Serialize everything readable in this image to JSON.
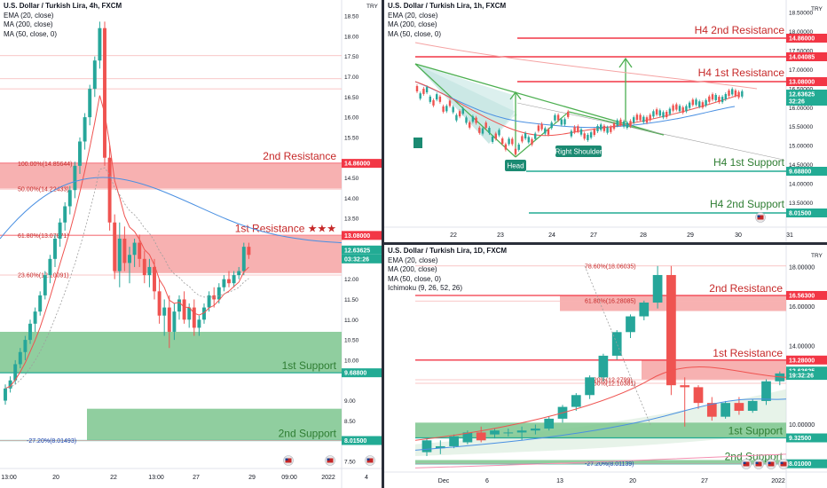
{
  "panels": [
    {
      "id": "h4",
      "header": {
        "title": "U.S. Dollar / Turkish Lira, 4h, FXCM",
        "indicators": [
          "EMA (20, close)",
          "MA (200, close)",
          "MA (50, close, 0)"
        ]
      },
      "chart_data": {
        "type": "candlestick",
        "title": "U.S. Dollar / Turkish Lira, 4h, FXCM",
        "currency": "TRY",
        "ylim": [
          7.5,
          18.5
        ],
        "y_ticks": [
          7.5,
          8.0,
          8.5,
          9.0,
          9.5,
          10.0,
          10.5,
          11.0,
          11.5,
          12.0,
          12.5,
          13.0,
          13.5,
          14.0,
          14.5,
          15.0,
          15.5,
          16.0,
          16.5,
          17.0,
          17.5,
          18.0,
          18.5
        ],
        "x_ticks": [
          "13:00",
          "20",
          "22",
          "13:00",
          "27",
          "29",
          "09:00",
          "2022",
          "4"
        ],
        "candles": [
          [
            9.0,
            9.4,
            8.9,
            9.3
          ],
          [
            9.3,
            9.6,
            9.2,
            9.5
          ],
          [
            9.5,
            10.0,
            9.4,
            9.9
          ],
          [
            9.9,
            10.3,
            9.8,
            10.2
          ],
          [
            10.2,
            10.6,
            10.0,
            10.5
          ],
          [
            10.5,
            11.0,
            10.4,
            10.9
          ],
          [
            10.9,
            11.3,
            10.7,
            11.2
          ],
          [
            11.2,
            11.7,
            11.1,
            11.6
          ],
          [
            11.6,
            12.2,
            11.5,
            12.1
          ],
          [
            12.1,
            12.6,
            11.9,
            12.5
          ],
          [
            12.5,
            13.1,
            12.3,
            13.0
          ],
          [
            13.0,
            13.5,
            12.8,
            13.4
          ],
          [
            13.4,
            13.9,
            13.2,
            13.8
          ],
          [
            13.8,
            14.3,
            13.6,
            14.2
          ],
          [
            14.2,
            14.9,
            14.0,
            14.8
          ],
          [
            14.8,
            15.5,
            14.6,
            15.4
          ],
          [
            15.4,
            16.1,
            15.2,
            16.0
          ],
          [
            16.0,
            16.8,
            15.8,
            16.7
          ],
          [
            16.7,
            17.5,
            16.5,
            17.4
          ],
          [
            17.4,
            18.36,
            17.2,
            18.2
          ],
          [
            18.2,
            18.36,
            14.8,
            15.0
          ],
          [
            15.0,
            15.3,
            13.2,
            13.4
          ],
          [
            13.4,
            13.6,
            12.0,
            12.2
          ],
          [
            12.2,
            13.4,
            11.8,
            13.0
          ],
          [
            13.0,
            13.3,
            12.2,
            12.4
          ],
          [
            12.4,
            12.8,
            11.9,
            12.6
          ],
          [
            12.6,
            13.0,
            12.3,
            12.9
          ],
          [
            12.9,
            13.1,
            12.3,
            12.5
          ],
          [
            12.5,
            12.7,
            11.9,
            12.1
          ],
          [
            12.1,
            12.5,
            11.8,
            12.3
          ],
          [
            12.3,
            12.5,
            11.5,
            11.7
          ],
          [
            11.7,
            12.0,
            10.9,
            11.1
          ],
          [
            11.1,
            11.5,
            10.6,
            11.3
          ],
          [
            11.3,
            11.6,
            10.3,
            10.7
          ],
          [
            10.7,
            11.4,
            10.5,
            11.2
          ],
          [
            11.2,
            11.6,
            11.0,
            11.5
          ],
          [
            11.5,
            11.7,
            10.9,
            11.0
          ],
          [
            11.0,
            11.4,
            10.8,
            11.3
          ],
          [
            11.3,
            11.5,
            10.6,
            10.8
          ],
          [
            10.8,
            11.1,
            10.6,
            11.0
          ],
          [
            11.0,
            11.4,
            10.9,
            11.3
          ],
          [
            11.3,
            11.7,
            11.2,
            11.6
          ],
          [
            11.6,
            11.8,
            11.3,
            11.5
          ],
          [
            11.5,
            11.9,
            11.4,
            11.8
          ],
          [
            11.8,
            12.1,
            11.7,
            12.0
          ],
          [
            12.0,
            12.2,
            11.8,
            11.9
          ],
          [
            11.9,
            12.2,
            11.8,
            12.1
          ],
          [
            12.1,
            12.3,
            12.0,
            12.2
          ],
          [
            12.2,
            12.9,
            12.1,
            12.8
          ],
          [
            12.8,
            12.9,
            12.5,
            12.6
          ]
        ],
        "fib_levels": [
          {
            "label": "100.00%(14.85644)",
            "value": 14.856
          },
          {
            "label": "50.00%(14.22433)",
            "value": 14.224
          },
          {
            "label": "61.80%(13.07871)",
            "value": 13.079
          },
          {
            "label": "23.60%(12.10091)",
            "value": 12.101
          },
          {
            "label": "-27.20%(8.01493)",
            "value": 8.015
          }
        ],
        "zones": [
          {
            "label": "2nd Resistance",
            "from": 14.24,
            "to": 14.86,
            "kind": "resistance"
          },
          {
            "label": "1st Resistance ★★★",
            "from": 12.15,
            "to": 13.08,
            "kind": "resistance"
          },
          {
            "label": "1st Support",
            "from": 9.688,
            "to": 10.7,
            "kind": "support"
          },
          {
            "label": "2nd Support",
            "from": 8.015,
            "to": 8.8,
            "kind": "support"
          }
        ],
        "price_tags": [
          {
            "label": "14.86000",
            "value": 14.86,
            "color": "#f23645"
          },
          {
            "label": "13.08000",
            "value": 13.08,
            "color": "#f23645"
          },
          {
            "label": "12.63625",
            "value": 12.72,
            "color": "#22ab94"
          },
          {
            "label": "03:32:26",
            "value": 12.5,
            "color": "#22ab94"
          },
          {
            "label": "9.68800",
            "value": 9.688,
            "color": "#22ab94"
          },
          {
            "label": "8.01500",
            "value": 8.015,
            "color": "#22ab94"
          }
        ]
      }
    },
    {
      "id": "h1",
      "header": {
        "title": "U.S. Dollar / Turkish Lira, 1h, FXCM",
        "indicators": [
          "EMA (20, close)",
          "MA (200, close)",
          "MA (50, close, 0)"
        ]
      },
      "chart_data": {
        "type": "candlestick",
        "title": "U.S. Dollar / Turkish Lira, 1h, FXCM",
        "currency": "TRY",
        "ylim": [
          13.0,
          18.5
        ],
        "y_ticks": [
          13.5,
          14.0,
          14.5,
          15.0,
          15.5,
          16.0,
          16.5,
          17.0,
          17.5,
          18.0,
          18.5
        ],
        "x_ticks": [
          "22",
          "23",
          "24",
          "27",
          "28",
          "29",
          "30",
          "31"
        ],
        "pattern_labels": [
          "Head",
          "Right Shoulder"
        ],
        "zones": [
          {
            "label": "H4 2nd Resistance",
            "value": 14.86
          },
          {
            "label": "H4 1st Resistance",
            "value": 13.08
          },
          {
            "label": "H4 1st Support",
            "value": 9.688
          },
          {
            "label": "H4 2nd Support",
            "value": 8.015
          }
        ],
        "price_tags": [
          {
            "label": "14.86000",
            "color": "#f23645"
          },
          {
            "label": "14.04085",
            "color": "#f23645"
          },
          {
            "label": "13.08000",
            "color": "#f23645"
          },
          {
            "label": "12.63625",
            "color": "#22ab94"
          },
          {
            "label": "32:26",
            "color": "#22ab94"
          },
          {
            "label": "9.68800",
            "color": "#22ab94"
          },
          {
            "label": "8.01500",
            "color": "#22ab94"
          }
        ]
      }
    },
    {
      "id": "d1",
      "header": {
        "title": "U.S. Dollar / Turkish Lira, 1D, FXCM",
        "indicators": [
          "EMA (20, close)",
          "MA (200, close)",
          "MA (50, close, 0)",
          "Ichimoku (9, 26, 52, 26)"
        ]
      },
      "chart_data": {
        "type": "candlestick",
        "title": "U.S. Dollar / Turkish Lira, 1D, FXCM",
        "currency": "TRY",
        "ylim": [
          7.5,
          18.5
        ],
        "y_ticks": [
          10.0,
          12.0,
          14.0,
          16.0,
          18.0
        ],
        "x_ticks": [
          "Dec",
          "6",
          "13",
          "20",
          "27",
          "2022"
        ],
        "candles": [
          [
            8.6,
            9.3,
            8.4,
            9.2
          ],
          [
            8.8,
            9.2,
            8.5,
            8.9
          ],
          [
            8.9,
            9.5,
            8.8,
            9.4
          ],
          [
            9.1,
            9.7,
            9.0,
            9.6
          ],
          [
            9.6,
            9.9,
            9.1,
            9.2
          ],
          [
            9.5,
            9.8,
            9.3,
            9.7
          ],
          [
            9.6,
            9.8,
            9.4,
            9.6
          ],
          [
            9.6,
            9.9,
            9.2,
            9.7
          ],
          [
            9.7,
            10.0,
            9.5,
            9.8
          ],
          [
            9.8,
            10.4,
            9.7,
            10.3
          ],
          [
            10.3,
            11.0,
            10.1,
            10.9
          ],
          [
            10.9,
            11.6,
            10.7,
            11.5
          ],
          [
            11.5,
            12.5,
            11.3,
            12.4
          ],
          [
            12.4,
            13.6,
            12.2,
            13.5
          ],
          [
            13.5,
            14.8,
            13.3,
            14.7
          ],
          [
            14.7,
            15.6,
            14.4,
            15.5
          ],
          [
            15.5,
            16.3,
            15.3,
            16.2
          ],
          [
            16.2,
            18.06,
            15.9,
            17.6
          ],
          [
            17.6,
            18.06,
            11.5,
            12.0
          ],
          [
            12.0,
            12.4,
            9.9,
            11.9
          ],
          [
            11.9,
            12.0,
            10.8,
            11.1
          ],
          [
            11.1,
            11.4,
            10.2,
            10.4
          ],
          [
            10.4,
            11.2,
            10.3,
            11.1
          ],
          [
            11.1,
            11.4,
            10.5,
            10.7
          ],
          [
            10.7,
            11.3,
            10.6,
            11.2
          ],
          [
            11.2,
            12.3,
            11.0,
            12.2
          ],
          [
            12.2,
            12.7,
            12.0,
            12.6
          ]
        ],
        "fib_levels": [
          {
            "label": "78.60%(18.06035)",
            "value": 18.06
          },
          {
            "label": "61.80%(16.28085)",
            "value": 16.28
          },
          {
            "label": "38.20%(12.2799)",
            "value": 12.28
          },
          {
            "label": "23.60%(12.10381)",
            "value": 12.1
          },
          {
            "label": "-27.20%(8.01139)",
            "value": 8.011
          }
        ],
        "zones": [
          {
            "label": "2nd Resistance",
            "from": 15.77,
            "to": 16.56,
            "kind": "resistance"
          },
          {
            "label": "1st Resistance",
            "from": 12.3,
            "to": 13.28,
            "kind": "resistance"
          },
          {
            "label": "1st Support",
            "from": 9.325,
            "to": 10.1,
            "kind": "support"
          },
          {
            "label": "2nd Support",
            "from": 8.01,
            "to": 8.2,
            "kind": "support"
          }
        ],
        "price_tags": [
          {
            "label": "18.00000",
            "color": "none"
          },
          {
            "label": "16.56300",
            "color": "#f23645"
          },
          {
            "label": "16.00000",
            "color": "none"
          },
          {
            "label": "14.00000",
            "color": "none"
          },
          {
            "label": "13.28000",
            "color": "#f23645"
          },
          {
            "label": "12.63625",
            "color": "#22ab94"
          },
          {
            "label": "19:32:26",
            "color": "#22ab94"
          },
          {
            "label": "10.00000",
            "color": "none"
          },
          {
            "label": "9.32500",
            "color": "#22ab94"
          },
          {
            "label": "8.01000",
            "color": "#22ab94"
          }
        ]
      }
    }
  ],
  "colors": {
    "up": "#26a69a",
    "down": "#ef5350",
    "resistance": "#f23645",
    "support": "#22ab94",
    "support_zone": "#7cc68e",
    "resistance_zone": "#f6a3a3"
  }
}
